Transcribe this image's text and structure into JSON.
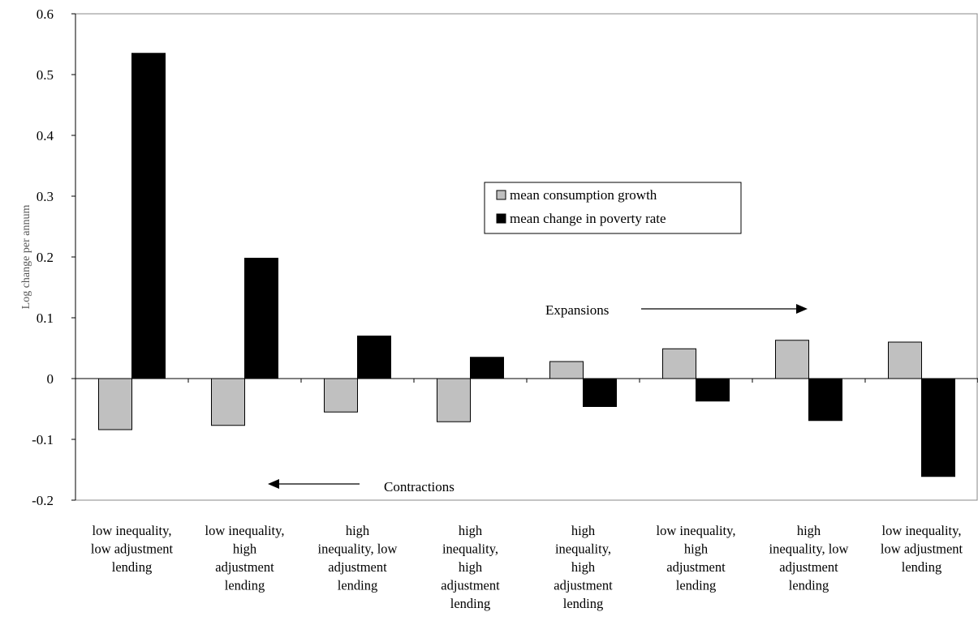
{
  "chart_data": {
    "type": "bar",
    "title": "",
    "xlabel": "",
    "ylabel": "Log change per annum",
    "ylim": [
      -0.2,
      0.6
    ],
    "yticks": [
      -0.2,
      -0.1,
      0,
      0.1,
      0.2,
      0.3,
      0.4,
      0.5,
      0.6
    ],
    "ytick_labels": [
      "-0.2",
      "-0.1",
      "0",
      "0.1",
      "0.2",
      "0.3",
      "0.4",
      "0.5",
      "0.6"
    ],
    "categories": [
      [
        "low inequality,",
        "low adjustment",
        "lending"
      ],
      [
        "low inequality,",
        "high",
        "adjustment",
        "lending"
      ],
      [
        "high",
        "inequality, low",
        "adjustment",
        "lending"
      ],
      [
        "high",
        "inequality,",
        "high",
        "adjustment",
        "lending"
      ],
      [
        "high",
        "inequality,",
        "high",
        "adjustment",
        "lending"
      ],
      [
        "low inequality,",
        "high",
        "adjustment",
        "lending"
      ],
      [
        "high",
        "inequality, low",
        "adjustment",
        "lending"
      ],
      [
        "low inequality,",
        "low adjustment",
        "lending"
      ]
    ],
    "series": [
      {
        "name": "mean consumption growth",
        "color": "#c0c0c0",
        "values": [
          -0.084,
          -0.077,
          -0.055,
          -0.071,
          0.028,
          0.049,
          0.063,
          0.06
        ]
      },
      {
        "name": "mean change in poverty rate",
        "color": "#000000",
        "values": [
          0.535,
          0.198,
          0.07,
          0.035,
          -0.046,
          -0.037,
          -0.069,
          -0.161
        ]
      }
    ],
    "legend": {
      "position": "center-right"
    },
    "grid": false,
    "annotations": [
      {
        "text": "Expansions",
        "arrow": "right"
      },
      {
        "text": "Contractions",
        "arrow": "left"
      }
    ]
  }
}
